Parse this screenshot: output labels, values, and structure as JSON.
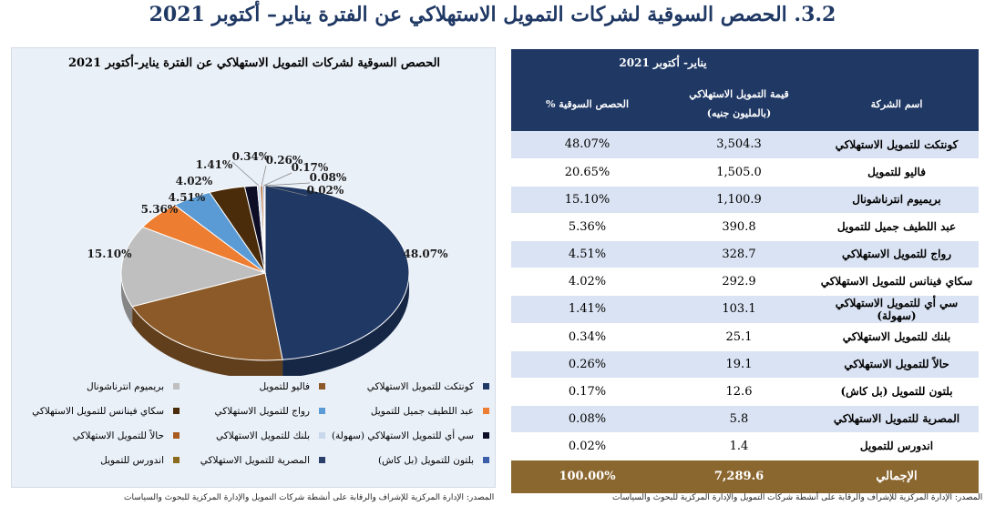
{
  "title": "3.2. الحصص السوقية لشركات التمويل الاستهلاكي عن الفترة يناير– أكتوبر 2021",
  "chart_title": "الحصص السوقية لشركات التمويل الاستهلاكي عن الفترة يناير-أكتوبر 2021",
  "chart_data": {
    "type": "pie",
    "title": "الحصص السوقية لشركات التمويل الاستهلاكي عن الفترة يناير-أكتوبر 2021",
    "slices": [
      {
        "name": "كونتكت للتمويل الاستهلاكي",
        "value": 48.07,
        "label": "48.07%",
        "color": "#1f3864"
      },
      {
        "name": "فاليو للتمويل",
        "value": 20.65,
        "label": "20.65%",
        "color": "#8c5a28"
      },
      {
        "name": "بريميوم انترناشونال",
        "value": 15.1,
        "label": "15.10%",
        "color": "#bfbfbf"
      },
      {
        "name": "عبد اللطيف جميل للتمويل",
        "value": 5.36,
        "label": "5.36%",
        "color": "#ed7d31"
      },
      {
        "name": "رواج للتمويل الاستهلاكي",
        "value": 4.51,
        "label": "4.51%",
        "color": "#5b9bd5"
      },
      {
        "name": "سكاي فينانس للتمويل الاستهلاكي",
        "value": 4.02,
        "label": "4.02%",
        "color": "#4a2c0a"
      },
      {
        "name": "سي أي للتمويل الاستهلاكي (سهولة)",
        "value": 1.41,
        "label": "1.41%",
        "color": "#0d0d26"
      },
      {
        "name": "بلنك للتمويل الاستهلاكي",
        "value": 0.34,
        "label": "0.34%",
        "color": "#c9d7ec"
      },
      {
        "name": "حالاً للتمويل الاستهلاكي",
        "value": 0.26,
        "label": "0.26%",
        "color": "#a85a1f"
      },
      {
        "name": "بلتون للتمويل (بل كاش)",
        "value": 0.17,
        "label": "0.17%",
        "color": "#3b5ea8"
      },
      {
        "name": "المصرية للتمويل الاستهلاكي",
        "value": 0.08,
        "label": "0.08%",
        "color": "#2b3f6b"
      },
      {
        "name": "اندورس للتمويل",
        "value": 0.02,
        "label": "0.02%",
        "color": "#8a6a1c"
      }
    ]
  },
  "table": {
    "period_header": "يناير- أكتوبر 2021",
    "col_company": "اسم الشركة",
    "col_value_line1": "قيمة التمويل الاستهلاكي",
    "col_value_line2": "(بالمليون جنيه)",
    "col_share": "الحصص السوقية %",
    "rows": [
      {
        "company": "كونتكت للتمويل الاستهلاكي",
        "value": "3,504.3",
        "share": "48.07%"
      },
      {
        "company": "فاليو للتمويل",
        "value": "1,505.0",
        "share": "20.65%"
      },
      {
        "company": "بريميوم انترناشونال",
        "value": "1,100.9",
        "share": "15.10%"
      },
      {
        "company": "عبد اللطيف جميل للتمويل",
        "value": "390.8",
        "share": "5.36%"
      },
      {
        "company": "رواج للتمويل الاستهلاكي",
        "value": "328.7",
        "share": "4.51%"
      },
      {
        "company": "سكاي فينانس للتمويل الاستهلاكي",
        "value": "292.9",
        "share": "4.02%"
      },
      {
        "company": "سي أي للتمويل الاستهلاكي (سهولة)",
        "value": "103.1",
        "share": "1.41%"
      },
      {
        "company": "بلنك للتمويل الاستهلاكي",
        "value": "25.1",
        "share": "0.34%"
      },
      {
        "company": "حالاً للتمويل الاستهلاكي",
        "value": "19.1",
        "share": "0.26%"
      },
      {
        "company": "بلتون للتمويل (بل كاش)",
        "value": "12.6",
        "share": "0.17%"
      },
      {
        "company": "المصرية للتمويل الاستهلاكي",
        "value": "5.8",
        "share": "0.08%"
      },
      {
        "company": "اندورس للتمويل",
        "value": "1.4",
        "share": "0.02%"
      }
    ],
    "total": {
      "company": "الإجمالي",
      "value": "7,289.6",
      "share": "100.00%"
    }
  },
  "source_left": "المصدر: الإدارة المركزية للإشراف والرقابة على أنشطة شركات التمويل والإدارة المركزية للبحوث والسياسات",
  "source_right": "المصدر: الإدارة المركزية للإشراف والرقابة على أنشطة شركات التمويل والإدارة المركزية للبحوث والسياسات"
}
